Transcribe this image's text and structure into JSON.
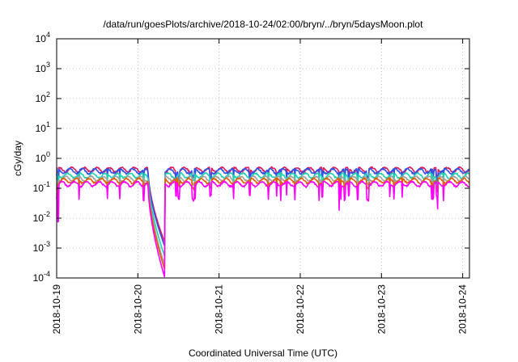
{
  "chart_data": {
    "type": "line",
    "title": "/data/run/goesPlots/archive/2018-10-24/02:00/bryn/../bryn/5daysMoon.plot",
    "xlabel": "Coordinated Universal Time (UTC)",
    "ylabel": "cGy/day",
    "y_scale": "log",
    "ylim": [
      0.0001,
      10000
    ],
    "y_ticks": [
      {
        "value": 0.0001,
        "base": "10",
        "exp": "-4"
      },
      {
        "value": 0.001,
        "base": "10",
        "exp": "-3"
      },
      {
        "value": 0.01,
        "base": "10",
        "exp": "-2"
      },
      {
        "value": 0.1,
        "base": "10",
        "exp": "-1"
      },
      {
        "value": 1,
        "base": "10",
        "exp": "0"
      },
      {
        "value": 10,
        "base": "10",
        "exp": "1"
      },
      {
        "value": 100,
        "base": "10",
        "exp": "2"
      },
      {
        "value": 1000,
        "base": "10",
        "exp": "3"
      },
      {
        "value": 10000,
        "base": "10",
        "exp": "4"
      }
    ],
    "xlim": [
      "2018-10-19",
      "2018-10-24 02:00"
    ],
    "x_ticks": [
      "2018-10-19",
      "2018-10-20",
      "2018-10-21",
      "2018-10-22",
      "2018-10-23",
      "2018-10-24"
    ],
    "grid": true,
    "legend": "none",
    "anomaly": {
      "start": "2018-10-20 03:00",
      "end": "2018-10-20 08:00"
    },
    "series": [
      {
        "color": "#e0195a",
        "base": 0.42,
        "minimum": 0.0015
      },
      {
        "color": "#3050e8",
        "base": 0.38,
        "minimum": 0.0011
      },
      {
        "color": "#20d0b0",
        "base": 0.27,
        "minimum": 0.0005
      },
      {
        "color": "#a0a0a0",
        "base": 0.21,
        "minimum": 0.00025
      },
      {
        "color": "#e06000",
        "base": 0.18,
        "minimum": 0.00018
      },
      {
        "color": "#ff00ff",
        "base": 0.14,
        "minimum": 0.0001
      }
    ]
  }
}
